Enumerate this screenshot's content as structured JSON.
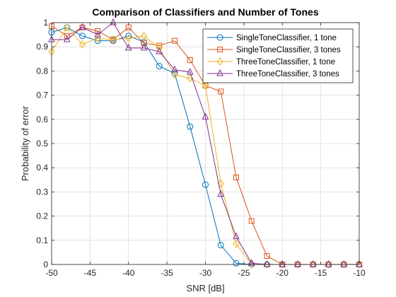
{
  "chart_data": {
    "type": "line",
    "title": "Comparison of Classifiers and Number of Tones",
    "xlabel": "SNR [dB]",
    "ylabel": "Probability of error",
    "xlim": [
      -50,
      -10
    ],
    "ylim": [
      0,
      1
    ],
    "xticks": [
      -50,
      -45,
      -40,
      -35,
      -30,
      -25,
      -20,
      -15,
      -10
    ],
    "yticks": [
      0,
      0.1,
      0.2,
      0.3,
      0.4,
      0.5,
      0.6,
      0.7,
      0.8,
      0.9,
      1
    ],
    "grid": true,
    "legend_location": "top-right",
    "x": [
      -50,
      -48,
      -46,
      -44,
      -42,
      -40,
      -38,
      -36,
      -34,
      -32,
      -30,
      -28,
      -26,
      -24,
      -22,
      -20,
      -18,
      -16,
      -14,
      -12,
      -10
    ],
    "series": [
      {
        "name": "SingleToneClassifier, 1 tone",
        "color": "#0072BD",
        "marker": "circle",
        "values": [
          0.96,
          0.98,
          0.945,
          0.925,
          0.925,
          0.945,
          0.92,
          0.82,
          0.79,
          0.57,
          0.33,
          0.08,
          0.005,
          0,
          0,
          0,
          0,
          0,
          0,
          0,
          0
        ]
      },
      {
        "name": "SingleToneClassifier, 3 tones",
        "color": "#D95319",
        "marker": "square",
        "values": [
          0.985,
          0.945,
          0.98,
          0.965,
          0.93,
          0.98,
          0.915,
          0.905,
          0.925,
          0.845,
          0.74,
          0.715,
          0.36,
          0.18,
          0.035,
          0,
          0,
          0,
          0,
          0,
          0
        ]
      },
      {
        "name": "ThreeToneClassifier, 1 tone",
        "color": "#EDB120",
        "marker": "diamond",
        "values": [
          0.88,
          0.98,
          0.91,
          0.935,
          0.93,
          0.935,
          0.945,
          0.895,
          0.785,
          0.77,
          0.74,
          0.335,
          0.085,
          0,
          0,
          0,
          0,
          0,
          0,
          0,
          0
        ]
      },
      {
        "name": "ThreeToneClassifier, 3 tones",
        "color": "#7E2F8E",
        "marker": "triangle",
        "values": [
          0.93,
          0.93,
          0.98,
          0.95,
          1.0,
          0.895,
          0.895,
          0.88,
          0.805,
          0.795,
          0.61,
          0.29,
          0.115,
          0.005,
          0,
          0,
          0,
          0,
          0,
          0,
          0
        ]
      }
    ]
  }
}
